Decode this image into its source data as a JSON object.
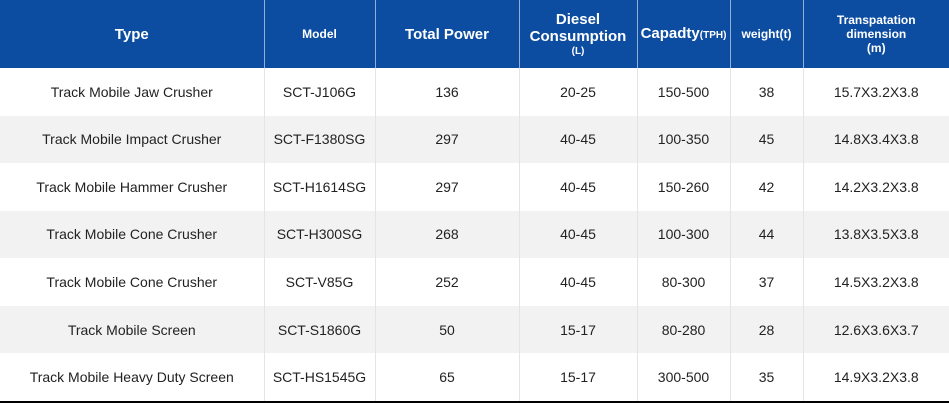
{
  "header": {
    "type": "Type",
    "model": "Model",
    "total_power": "Total Power",
    "diesel_line1": "Diesel",
    "diesel_line2": "Consumption",
    "diesel_unit": "(L)",
    "capacity": "Capadty",
    "capacity_unit": "(TPH)",
    "weight": "weight(t)",
    "dim_line1": "Transpatation",
    "dim_line2": "dimension",
    "dim_unit": "(m)"
  },
  "rows": [
    {
      "type": "Track Mobile Jaw Crusher",
      "model": "SCT-J106G",
      "power": "136",
      "diesel": "20-25",
      "capacity": "150-500",
      "weight": "38",
      "dimension": "15.7X3.2X3.8"
    },
    {
      "type": "Track Mobile Impact Crusher",
      "model": "SCT-F1380SG",
      "power": "297",
      "diesel": "40-45",
      "capacity": "100-350",
      "weight": "45",
      "dimension": "14.8X3.4X3.8"
    },
    {
      "type": "Track Mobile Hammer Crusher",
      "model": "SCT-H1614SG",
      "power": "297",
      "diesel": "40-45",
      "capacity": "150-260",
      "weight": "42",
      "dimension": "14.2X3.2X3.8"
    },
    {
      "type": "Track Mobile Cone Crusher",
      "model": "SCT-H300SG",
      "power": "268",
      "diesel": "40-45",
      "capacity": "100-300",
      "weight": "44",
      "dimension": "13.8X3.5X3.8"
    },
    {
      "type": "Track Mobile Cone Crusher",
      "model": "SCT-V85G",
      "power": "252",
      "diesel": "40-45",
      "capacity": "80-300",
      "weight": "37",
      "dimension": "14.5X3.2X3.8"
    },
    {
      "type": "Track Mobile Screen",
      "model": "SCT-S1860G",
      "power": "50",
      "diesel": "15-17",
      "capacity": "80-280",
      "weight": "28",
      "dimension": "12.6X3.6X3.7"
    },
    {
      "type": "Track Mobile Heavy Duty Screen",
      "model": "SCT-HS1545G",
      "power": "65",
      "diesel": "15-17",
      "capacity": "300-500",
      "weight": "35",
      "dimension": "14.9X3.2X3.8"
    }
  ]
}
